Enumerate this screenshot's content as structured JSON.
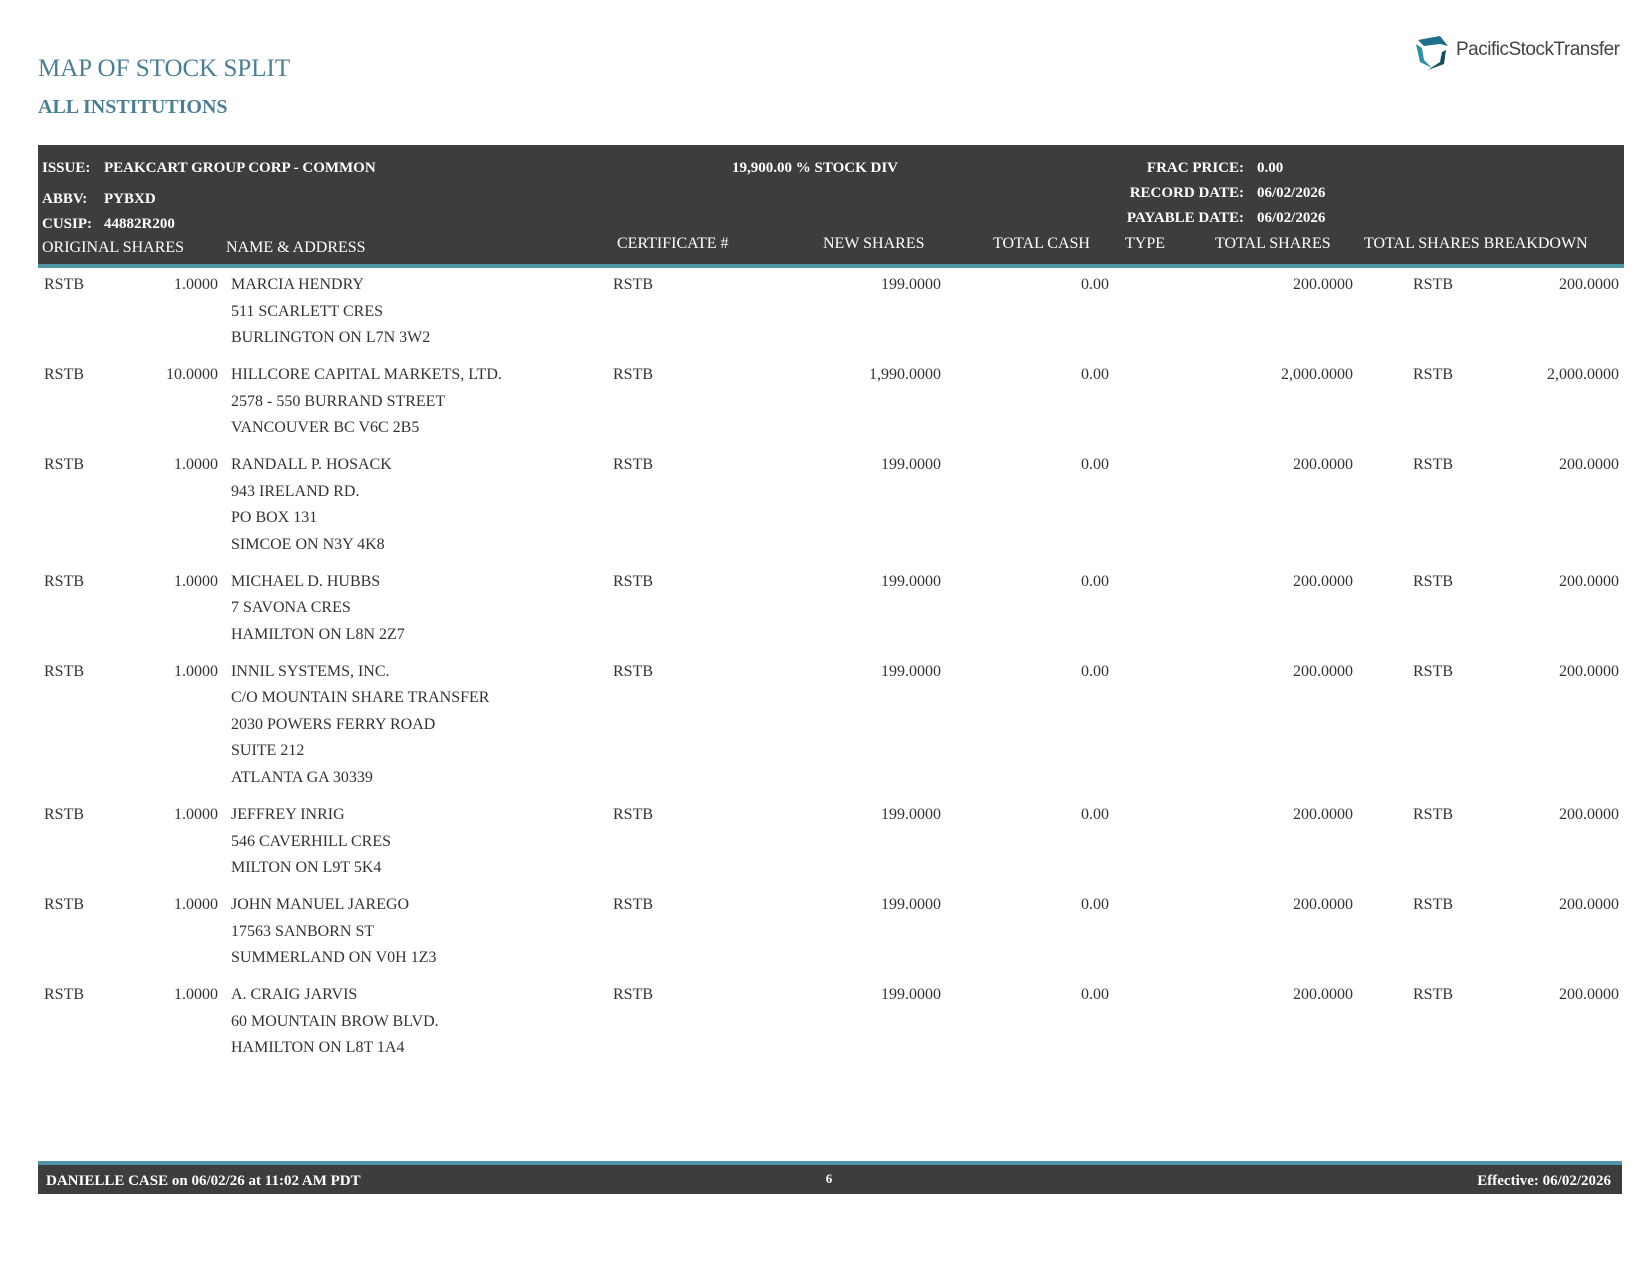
{
  "header": {
    "title": "MAP OF STOCK SPLIT",
    "subtitle": "ALL INSTITUTIONS",
    "logo": "PacificStockTransfer"
  },
  "info": {
    "issue_label": "ISSUE:",
    "issue": "PEAKCART GROUP CORP - COMMON",
    "abbv_label": "ABBV:",
    "abbv": "PYBXD",
    "cusip_label": "CUSIP:",
    "cusip": "44882R200",
    "dividend": "19,900.00 % STOCK DIV",
    "frac_price_label": "FRAC PRICE:",
    "frac_price": "0.00",
    "record_date_label": "RECORD DATE:",
    "record_date": "06/02/2026",
    "payable_date_label": "PAYABLE DATE:",
    "payable_date": "06/02/2026"
  },
  "columns": [
    "ORIGINAL SHARES",
    "NAME & ADDRESS",
    "CERTIFICATE #",
    "NEW SHARES",
    "TOTAL CASH",
    "TYPE",
    "TOTAL SHARES",
    "TOTAL SHARES BREAKDOWN"
  ],
  "rows": [
    {
      "type": "RSTB",
      "original_shares": "1.0000",
      "name_address": [
        "MARCIA HENDRY",
        "511 SCARLETT CRES",
        "BURLINGTON ON L7N 3W2"
      ],
      "certificate": "RSTB",
      "new_shares": "199.0000",
      "total_cash": "0.00",
      "total_shares": "200.0000",
      "breakdown_type": "RSTB",
      "breakdown_shares": "200.0000"
    },
    {
      "type": "RSTB",
      "original_shares": "10.0000",
      "name_address": [
        "HILLCORE CAPITAL MARKETS, LTD.",
        "2578 - 550 BURRAND STREET",
        "VANCOUVER BC V6C 2B5"
      ],
      "certificate": "RSTB",
      "new_shares": "1,990.0000",
      "total_cash": "0.00",
      "total_shares": "2,000.0000",
      "breakdown_type": "RSTB",
      "breakdown_shares": "2,000.0000"
    },
    {
      "type": "RSTB",
      "original_shares": "1.0000",
      "name_address": [
        "RANDALL P. HOSACK",
        "943 IRELAND RD.",
        "PO BOX 131",
        "SIMCOE ON N3Y 4K8"
      ],
      "certificate": "RSTB",
      "new_shares": "199.0000",
      "total_cash": "0.00",
      "total_shares": "200.0000",
      "breakdown_type": "RSTB",
      "breakdown_shares": "200.0000"
    },
    {
      "type": "RSTB",
      "original_shares": "1.0000",
      "name_address": [
        "MICHAEL D. HUBBS",
        "7 SAVONA CRES",
        "HAMILTON ON L8N 2Z7"
      ],
      "certificate": "RSTB",
      "new_shares": "199.0000",
      "total_cash": "0.00",
      "total_shares": "200.0000",
      "breakdown_type": "RSTB",
      "breakdown_shares": "200.0000"
    },
    {
      "type": "RSTB",
      "original_shares": "1.0000",
      "name_address": [
        "INNIL SYSTEMS, INC.",
        "C/O MOUNTAIN SHARE TRANSFER",
        "2030 POWERS FERRY ROAD",
        "SUITE 212",
        "ATLANTA GA 30339"
      ],
      "certificate": "RSTB",
      "new_shares": "199.0000",
      "total_cash": "0.00",
      "total_shares": "200.0000",
      "breakdown_type": "RSTB",
      "breakdown_shares": "200.0000"
    },
    {
      "type": "RSTB",
      "original_shares": "1.0000",
      "name_address": [
        "JEFFREY INRIG",
        "546 CAVERHILL CRES",
        "MILTON ON L9T 5K4"
      ],
      "certificate": "RSTB",
      "new_shares": "199.0000",
      "total_cash": "0.00",
      "total_shares": "200.0000",
      "breakdown_type": "RSTB",
      "breakdown_shares": "200.0000"
    },
    {
      "type": "RSTB",
      "original_shares": "1.0000",
      "name_address": [
        "JOHN MANUEL JAREGO",
        "17563 SANBORN ST",
        "SUMMERLAND ON V0H 1Z3"
      ],
      "certificate": "RSTB",
      "new_shares": "199.0000",
      "total_cash": "0.00",
      "total_shares": "200.0000",
      "breakdown_type": "RSTB",
      "breakdown_shares": "200.0000"
    },
    {
      "type": "RSTB",
      "original_shares": "1.0000",
      "name_address": [
        "A. CRAIG JARVIS",
        "60 MOUNTAIN BROW BLVD.",
        "HAMILTON ON L8T 1A4"
      ],
      "certificate": "RSTB",
      "new_shares": "199.0000",
      "total_cash": "0.00",
      "total_shares": "200.0000",
      "breakdown_type": "RSTB",
      "breakdown_shares": "200.0000"
    }
  ],
  "footer": {
    "user": "DANIELLE CASE on 06/02/26 at 11:02 AM PDT",
    "page": "6",
    "effective": "Effective: 06/02/2026"
  }
}
